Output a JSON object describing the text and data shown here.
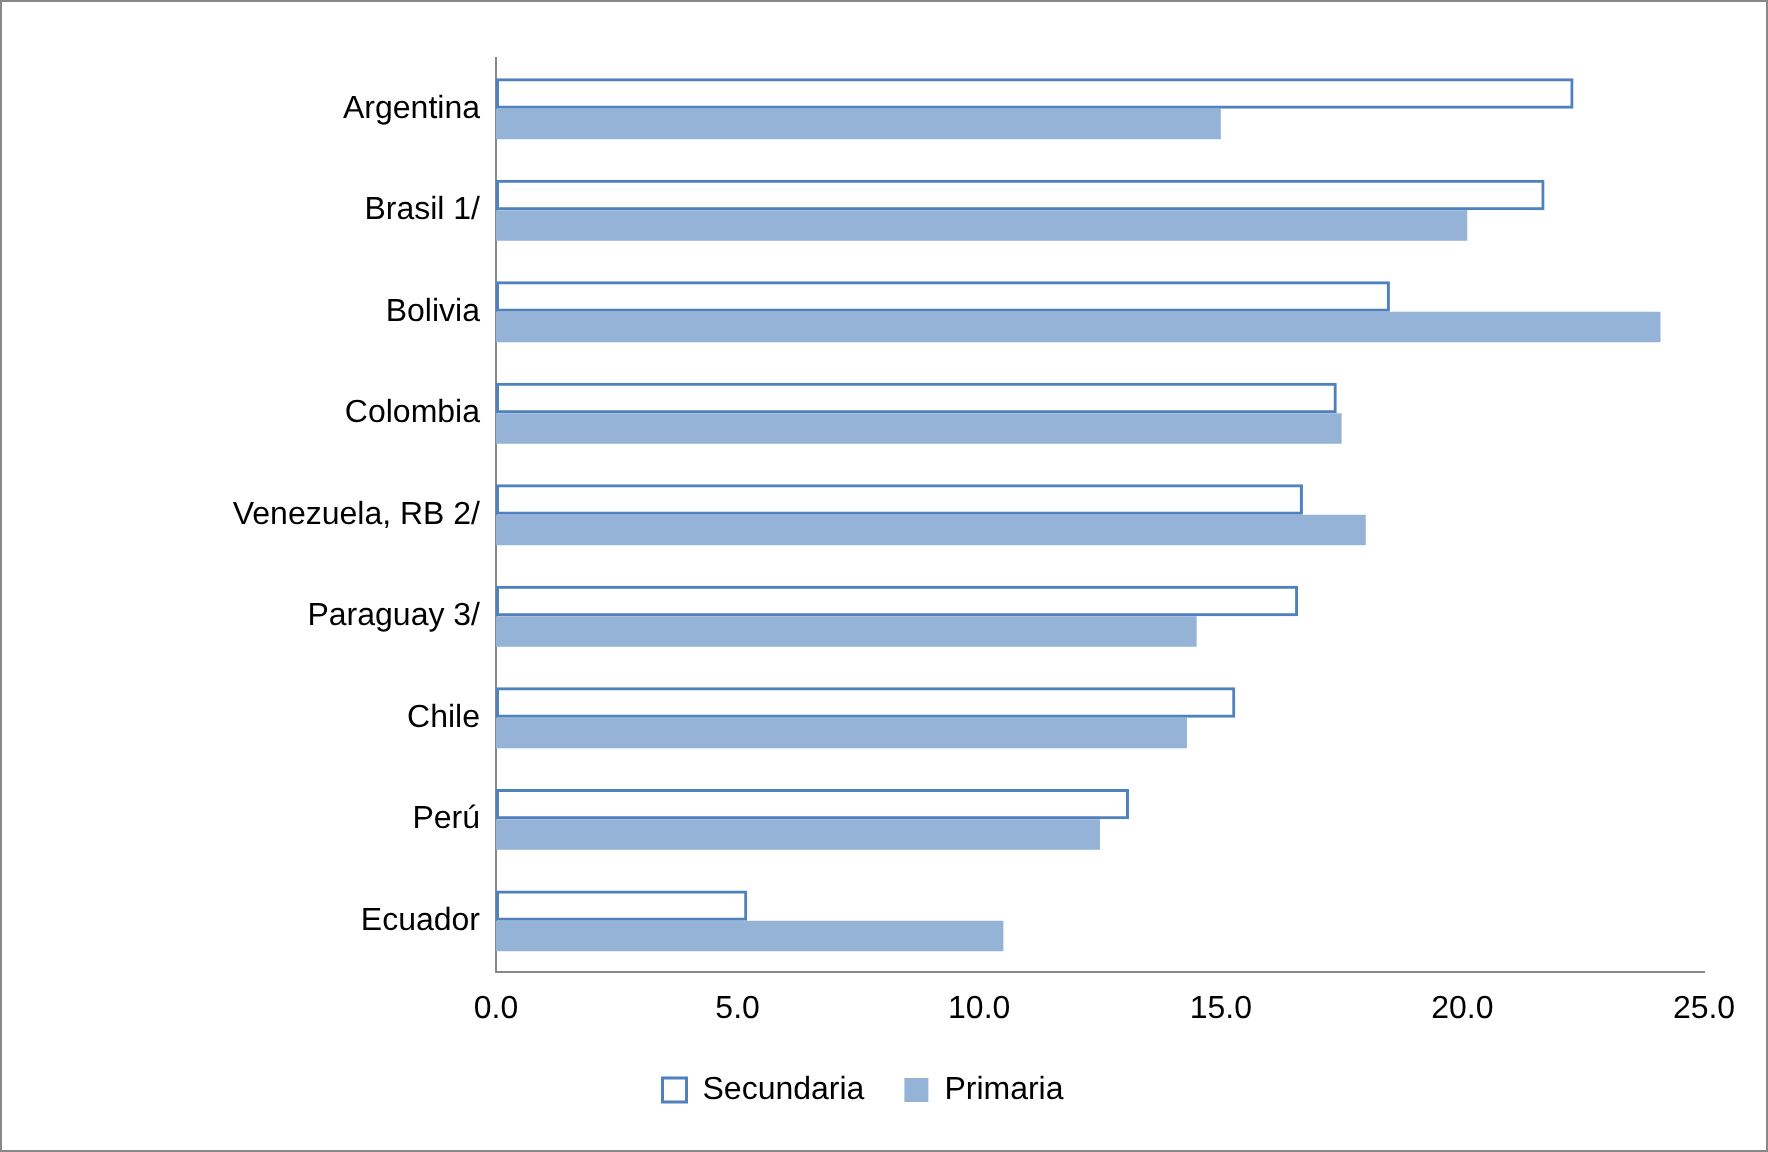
{
  "chart_data": {
    "type": "bar",
    "orientation": "horizontal",
    "categories": [
      "Argentina",
      "Brasil 1/",
      "Bolivia",
      "Colombia",
      "Venezuela, RB 2/",
      "Paraguay 3/",
      "Chile",
      "Perú",
      "Ecuador"
    ],
    "series": [
      {
        "name": "Secundaria",
        "color": "#4f81bd",
        "values": [
          22.3,
          21.7,
          18.5,
          17.4,
          16.7,
          16.6,
          15.3,
          13.1,
          5.2
        ]
      },
      {
        "name": "Primaria",
        "color": "#95b3d7",
        "values": [
          15.0,
          20.1,
          24.1,
          17.5,
          18.0,
          14.5,
          14.3,
          12.5,
          10.5
        ]
      }
    ],
    "xlim": [
      0,
      25
    ],
    "xticks": [
      {
        "value": 0,
        "label": "0.0"
      },
      {
        "value": 5,
        "label": "5.0"
      },
      {
        "value": 10,
        "label": "10.0"
      },
      {
        "value": 15,
        "label": "15.0"
      },
      {
        "value": 20,
        "label": "20.0"
      },
      {
        "value": 25,
        "label": "25.0"
      }
    ],
    "grid": false,
    "legend": "bottom"
  }
}
